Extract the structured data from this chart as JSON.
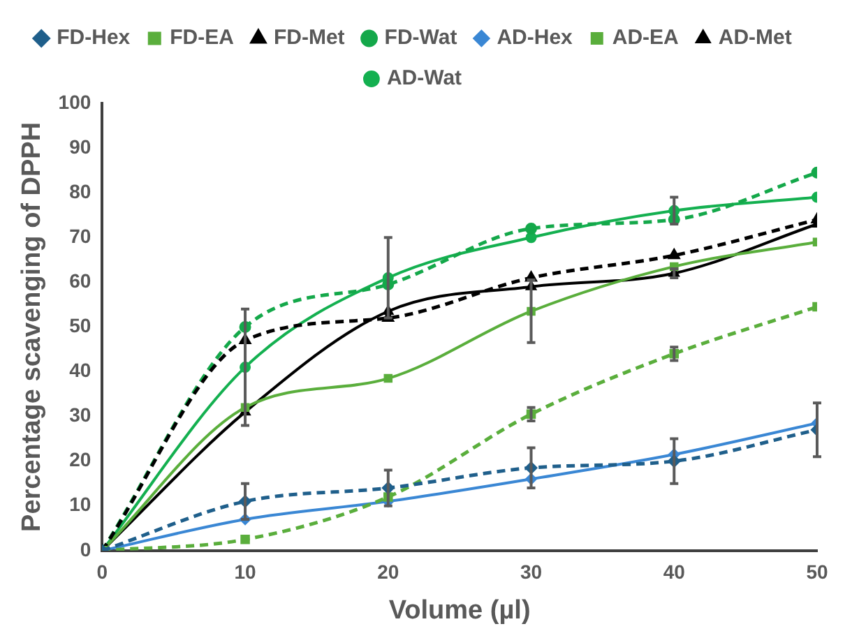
{
  "chart_data": {
    "type": "line",
    "xlabel": "Volume (µl)",
    "ylabel": "Percentage scavenging of DPPH",
    "x": [
      0,
      10,
      20,
      30,
      40,
      50
    ],
    "xlim": [
      0,
      50
    ],
    "xticks": [
      0,
      10,
      20,
      30,
      40,
      50
    ],
    "ylim": [
      0,
      100
    ],
    "yticks": [
      0,
      10,
      20,
      30,
      40,
      50,
      60,
      70,
      80,
      90,
      100
    ],
    "legend": "top",
    "grid": false,
    "series": [
      {
        "name": "FD-Hex",
        "color": "#1f5f8b",
        "line_style": "dashed",
        "marker": "diamond",
        "values": [
          0,
          11,
          14,
          18.5,
          20,
          27
        ],
        "errors": [
          null,
          4,
          4,
          4.5,
          5,
          6
        ]
      },
      {
        "name": "FD-EA",
        "color": "#5aae3c",
        "line_style": "dashed",
        "marker": "square",
        "values": [
          0,
          2.5,
          12,
          30.5,
          44,
          54.5
        ],
        "errors": [
          null,
          null,
          null,
          1.5,
          1.5,
          null
        ]
      },
      {
        "name": "FD-Met",
        "color": "#000000",
        "line_style": "dashed",
        "marker": "triangle",
        "values": [
          0,
          47,
          52,
          61,
          66,
          74
        ]
      },
      {
        "name": "FD-Wat",
        "color": "#14a84a",
        "line_style": "dashed",
        "marker": "circle",
        "values": [
          0,
          50,
          59.5,
          72,
          74,
          84.5
        ]
      },
      {
        "name": "AD-Hex",
        "color": "#3a87d4",
        "line_style": "solid",
        "marker": "diamond",
        "values": [
          0,
          7,
          11,
          16,
          21.5,
          28.5
        ]
      },
      {
        "name": "AD-EA",
        "color": "#5aae3c",
        "line_style": "solid",
        "marker": "square",
        "values": [
          0,
          32,
          38.5,
          53.5,
          63.5,
          69
        ],
        "errors": [
          null,
          null,
          null,
          7,
          null,
          null
        ]
      },
      {
        "name": "AD-Met",
        "color": "#000000",
        "line_style": "solid",
        "marker": "triangle",
        "values": [
          0,
          31,
          53.5,
          59,
          62,
          73
        ],
        "errors": [
          null,
          null,
          null,
          null,
          1,
          null
        ]
      },
      {
        "name": "AD-Wat",
        "color": "#14b050",
        "line_style": "solid",
        "marker": "circle",
        "values": [
          0,
          41,
          61,
          70,
          76,
          79
        ],
        "errors": [
          null,
          13,
          9,
          null,
          3,
          null
        ]
      }
    ]
  }
}
